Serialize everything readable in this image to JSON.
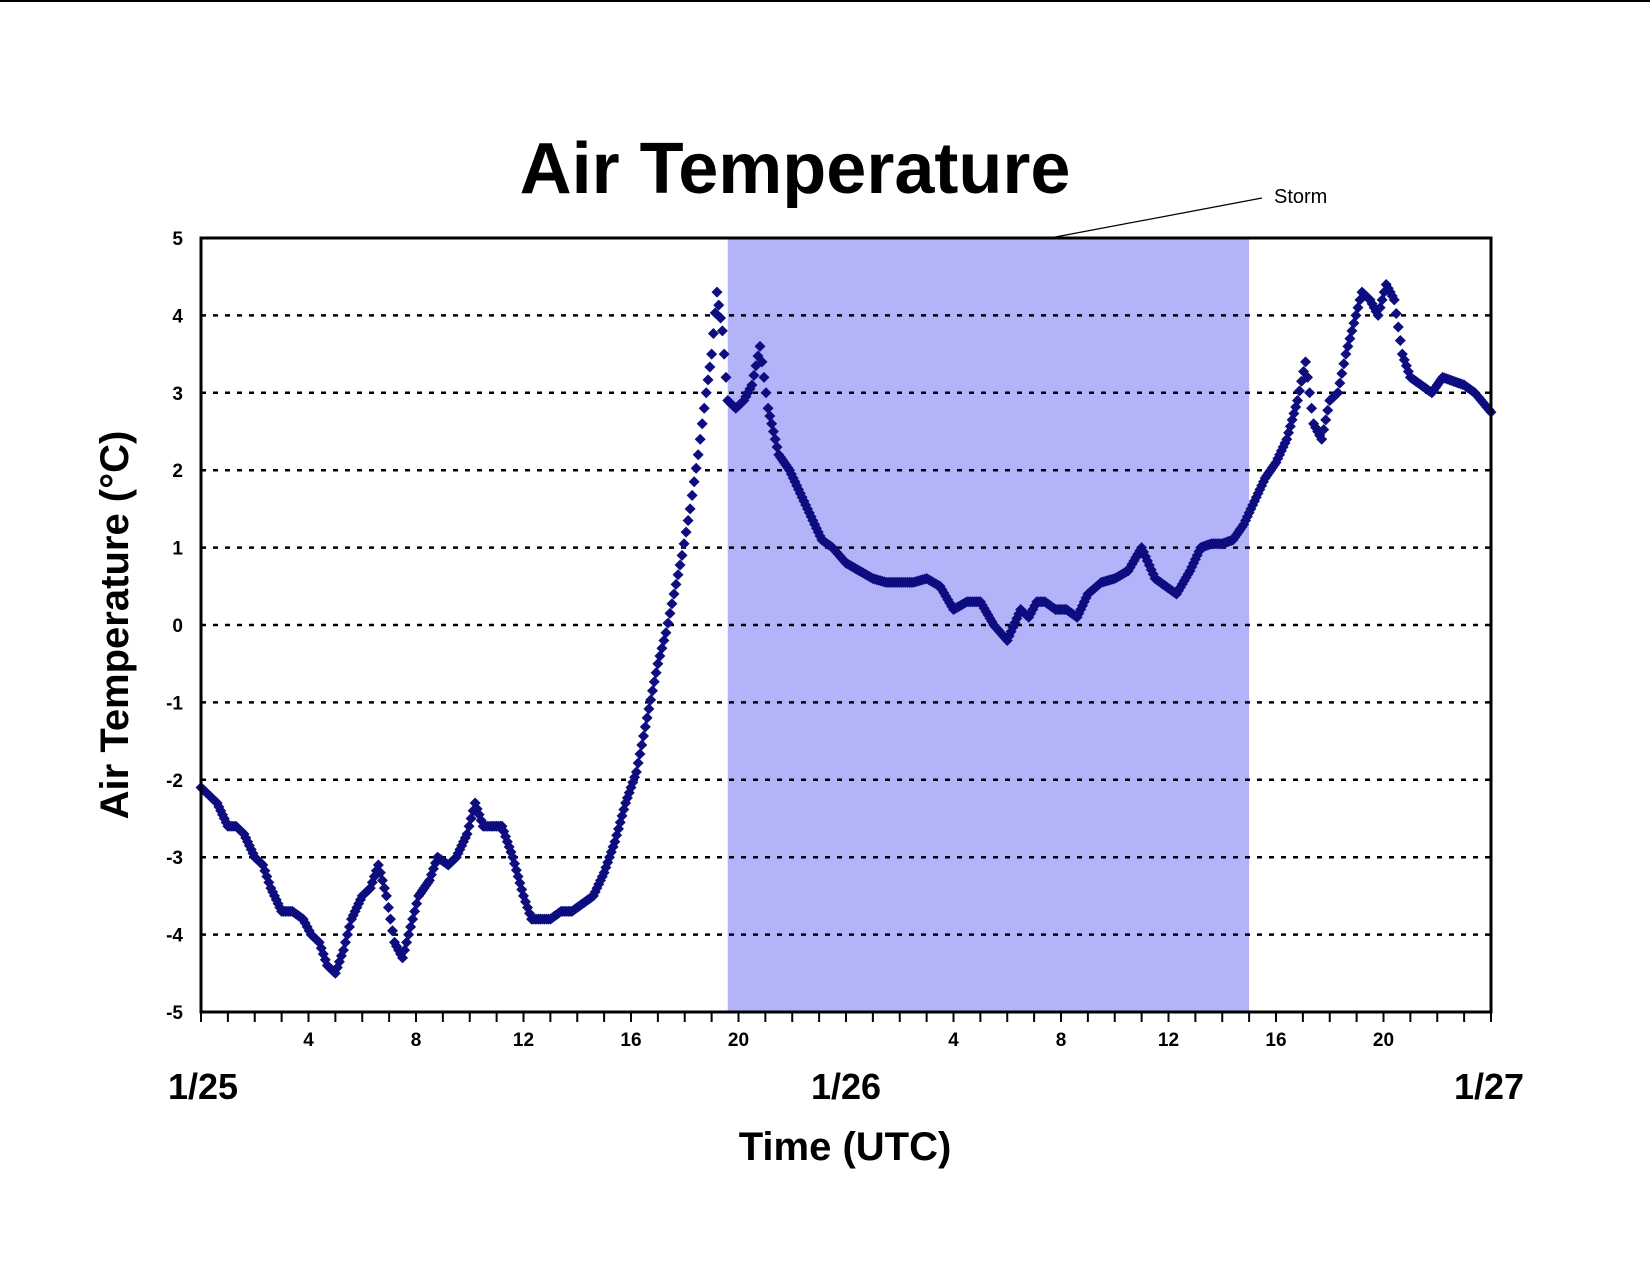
{
  "chart_data": {
    "type": "scatter",
    "title": "Air Temperature",
    "xlabel": "Time (UTC)",
    "ylabel": "Air Temperature (°C)",
    "x_unit": "hours",
    "xlim": [
      0,
      48
    ],
    "ylim": [
      -5,
      5
    ],
    "yticks": [
      -5,
      -4,
      -3,
      -2,
      -1,
      0,
      1,
      2,
      3,
      4,
      5
    ],
    "hour_ticks": [
      {
        "x": 4,
        "label": "4"
      },
      {
        "x": 8,
        "label": "8"
      },
      {
        "x": 12,
        "label": "12"
      },
      {
        "x": 16,
        "label": "16"
      },
      {
        "x": 20,
        "label": "20"
      },
      {
        "x": 28,
        "label": "4"
      },
      {
        "x": 32,
        "label": "8"
      },
      {
        "x": 36,
        "label": "12"
      },
      {
        "x": 40,
        "label": "16"
      },
      {
        "x": 44,
        "label": "20"
      }
    ],
    "date_labels": [
      {
        "x": 0,
        "label": "1/25"
      },
      {
        "x": 24,
        "label": "1/26"
      },
      {
        "x": 48,
        "label": "1/27"
      }
    ],
    "grid": "dotted horizontal",
    "shaded_region": {
      "x": [
        19.6,
        39
      ],
      "label": "Storm",
      "color": "#b3b3fa"
    },
    "series": [
      {
        "color": "#0d0d80",
        "marker": "diamond",
        "x": [
          0,
          0.3,
          0.6,
          1.0,
          1.3,
          1.6,
          2.0,
          2.3,
          2.6,
          3.0,
          3.4,
          3.8,
          4.1,
          4.4,
          4.7,
          5.0,
          5.3,
          5.6,
          6.0,
          6.3,
          6.6,
          6.9,
          7.2,
          7.5,
          7.8,
          8.1,
          8.5,
          8.8,
          9.2,
          9.5,
          9.9,
          10.2,
          10.5,
          10.8,
          11.2,
          11.6,
          12.0,
          12.3,
          12.7,
          13.0,
          13.4,
          13.8,
          14.2,
          14.6,
          15.0,
          15.4,
          15.8,
          16.2,
          16.6,
          17.0,
          17.3,
          17.6,
          17.9,
          18.2,
          18.5,
          18.8,
          19.0,
          19.2,
          19.4,
          19.6,
          19.9,
          20.2,
          20.5,
          20.8,
          21.1,
          21.5,
          21.9,
          22.3,
          22.7,
          23.1,
          23.5,
          24.0,
          24.5,
          25.0,
          25.5,
          26.0,
          26.5,
          27.0,
          27.5,
          28.0,
          28.5,
          29.0,
          29.5,
          30.0,
          30.5,
          30.8,
          31.1,
          31.4,
          31.8,
          32.2,
          32.6,
          33.0,
          33.5,
          34.0,
          34.5,
          35.0,
          35.5,
          35.9,
          36.3,
          36.8,
          37.2,
          37.6,
          38.0,
          38.4,
          38.8,
          39.2,
          39.6,
          40.0,
          40.4,
          40.8,
          41.1,
          41.4,
          41.7,
          42.0,
          42.3,
          42.6,
          42.9,
          43.2,
          43.5,
          43.8,
          44.1,
          44.4,
          44.7,
          45.0,
          45.4,
          45.8,
          46.2,
          46.6,
          47.0,
          47.4,
          48.0
        ],
        "y": [
          -2.1,
          -2.2,
          -2.3,
          -2.6,
          -2.6,
          -2.7,
          -3.0,
          -3.1,
          -3.4,
          -3.7,
          -3.7,
          -3.8,
          -4.0,
          -4.1,
          -4.4,
          -4.5,
          -4.2,
          -3.8,
          -3.5,
          -3.4,
          -3.1,
          -3.5,
          -4.1,
          -4.3,
          -3.9,
          -3.5,
          -3.3,
          -3.0,
          -3.1,
          -3.0,
          -2.7,
          -2.3,
          -2.6,
          -2.6,
          -2.6,
          -3.0,
          -3.5,
          -3.8,
          -3.8,
          -3.8,
          -3.7,
          -3.7,
          -3.6,
          -3.5,
          -3.2,
          -2.8,
          -2.3,
          -1.9,
          -1.2,
          -0.5,
          -0.1,
          0.4,
          0.9,
          1.5,
          2.2,
          3.0,
          3.5,
          4.3,
          3.8,
          2.9,
          2.8,
          2.9,
          3.1,
          3.6,
          2.8,
          2.2,
          2.0,
          1.7,
          1.4,
          1.1,
          1.0,
          0.8,
          0.7,
          0.6,
          0.55,
          0.55,
          0.55,
          0.6,
          0.5,
          0.2,
          0.3,
          0.3,
          0.0,
          -0.2,
          0.2,
          0.1,
          0.3,
          0.3,
          0.2,
          0.2,
          0.1,
          0.4,
          0.55,
          0.6,
          0.7,
          1.0,
          0.6,
          0.5,
          0.4,
          0.7,
          1.0,
          1.05,
          1.05,
          1.1,
          1.3,
          1.6,
          1.9,
          2.1,
          2.4,
          2.9,
          3.4,
          2.6,
          2.4,
          2.9,
          3.0,
          3.5,
          3.9,
          4.3,
          4.2,
          4.0,
          4.4,
          4.2,
          3.5,
          3.2,
          3.1,
          3.0,
          3.2,
          3.15,
          3.1,
          3.0,
          2.75
        ]
      }
    ],
    "annotations": [
      {
        "text": "Storm"
      }
    ]
  }
}
